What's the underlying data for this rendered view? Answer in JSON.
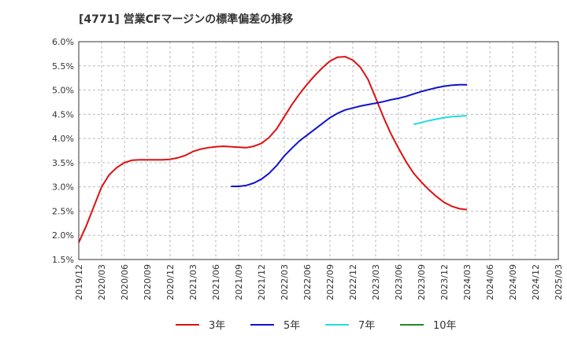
{
  "chart_data": {
    "type": "line",
    "title": "[4771]  営業CFマージンの標準偏差の推移",
    "xlabel": "",
    "ylabel": "",
    "ylim": [
      1.5,
      6.0
    ],
    "yticks": [
      "1.5%",
      "2.0%",
      "2.5%",
      "3.0%",
      "3.5%",
      "4.0%",
      "4.5%",
      "5.0%",
      "5.5%",
      "6.0%"
    ],
    "xticks": [
      "2019/12",
      "2020/03",
      "2020/06",
      "2020/09",
      "2020/12",
      "2021/03",
      "2021/06",
      "2021/09",
      "2021/12",
      "2022/03",
      "2022/06",
      "2022/09",
      "2022/12",
      "2023/03",
      "2023/06",
      "2023/09",
      "2023/12",
      "2024/03",
      "2024/06",
      "2024/09",
      "2024/12",
      "2025/03"
    ],
    "grid": true,
    "legend_position": "bottom",
    "series": [
      {
        "name": "3年",
        "color": "#dd1111",
        "points": [
          [
            "2019/12",
            1.85
          ],
          [
            "2020/01",
            2.2
          ],
          [
            "2020/02",
            2.6
          ],
          [
            "2020/03",
            3.0
          ],
          [
            "2020/04",
            3.25
          ],
          [
            "2020/05",
            3.4
          ],
          [
            "2020/06",
            3.5
          ],
          [
            "2020/07",
            3.55
          ],
          [
            "2020/08",
            3.56
          ],
          [
            "2020/09",
            3.56
          ],
          [
            "2020/10",
            3.56
          ],
          [
            "2020/11",
            3.56
          ],
          [
            "2020/12",
            3.57
          ],
          [
            "2021/01",
            3.6
          ],
          [
            "2021/02",
            3.65
          ],
          [
            "2021/03",
            3.73
          ],
          [
            "2021/04",
            3.78
          ],
          [
            "2021/05",
            3.81
          ],
          [
            "2021/06",
            3.83
          ],
          [
            "2021/07",
            3.84
          ],
          [
            "2021/08",
            3.83
          ],
          [
            "2021/09",
            3.82
          ],
          [
            "2021/10",
            3.81
          ],
          [
            "2021/11",
            3.84
          ],
          [
            "2021/12",
            3.9
          ],
          [
            "2022/01",
            4.02
          ],
          [
            "2022/02",
            4.2
          ],
          [
            "2022/03",
            4.45
          ],
          [
            "2022/04",
            4.7
          ],
          [
            "2022/05",
            4.92
          ],
          [
            "2022/06",
            5.12
          ],
          [
            "2022/07",
            5.3
          ],
          [
            "2022/08",
            5.46
          ],
          [
            "2022/09",
            5.6
          ],
          [
            "2022/10",
            5.68
          ],
          [
            "2022/11",
            5.69
          ],
          [
            "2022/12",
            5.62
          ],
          [
            "2023/01",
            5.47
          ],
          [
            "2023/02",
            5.22
          ],
          [
            "2023/03",
            4.84
          ],
          [
            "2023/04",
            4.45
          ],
          [
            "2023/05",
            4.1
          ],
          [
            "2023/06",
            3.8
          ],
          [
            "2023/07",
            3.52
          ],
          [
            "2023/08",
            3.28
          ],
          [
            "2023/09",
            3.1
          ],
          [
            "2023/10",
            2.94
          ],
          [
            "2023/11",
            2.8
          ],
          [
            "2023/12",
            2.68
          ],
          [
            "2024/01",
            2.6
          ],
          [
            "2024/02",
            2.55
          ],
          [
            "2024/03",
            2.53
          ]
        ]
      },
      {
        "name": "5年",
        "color": "#1111cc",
        "points": [
          [
            "2021/08",
            3.01
          ],
          [
            "2021/09",
            3.01
          ],
          [
            "2021/10",
            3.03
          ],
          [
            "2021/11",
            3.08
          ],
          [
            "2021/12",
            3.16
          ],
          [
            "2022/01",
            3.28
          ],
          [
            "2022/02",
            3.44
          ],
          [
            "2022/03",
            3.64
          ],
          [
            "2022/04",
            3.8
          ],
          [
            "2022/05",
            3.95
          ],
          [
            "2022/06",
            4.07
          ],
          [
            "2022/07",
            4.19
          ],
          [
            "2022/08",
            4.31
          ],
          [
            "2022/09",
            4.43
          ],
          [
            "2022/10",
            4.52
          ],
          [
            "2022/11",
            4.59
          ],
          [
            "2022/12",
            4.63
          ],
          [
            "2023/01",
            4.67
          ],
          [
            "2023/02",
            4.7
          ],
          [
            "2023/03",
            4.73
          ],
          [
            "2023/04",
            4.76
          ],
          [
            "2023/05",
            4.8
          ],
          [
            "2023/06",
            4.83
          ],
          [
            "2023/07",
            4.87
          ],
          [
            "2023/08",
            4.92
          ],
          [
            "2023/09",
            4.97
          ],
          [
            "2023/10",
            5.01
          ],
          [
            "2023/11",
            5.05
          ],
          [
            "2023/12",
            5.08
          ],
          [
            "2024/01",
            5.1
          ],
          [
            "2024/02",
            5.11
          ],
          [
            "2024/03",
            5.11
          ]
        ]
      },
      {
        "name": "7年",
        "color": "#22dddd",
        "points": [
          [
            "2023/08",
            4.29
          ],
          [
            "2023/09",
            4.33
          ],
          [
            "2023/10",
            4.37
          ],
          [
            "2023/11",
            4.4
          ],
          [
            "2023/12",
            4.43
          ],
          [
            "2024/01",
            4.45
          ],
          [
            "2024/02",
            4.46
          ],
          [
            "2024/03",
            4.47
          ]
        ]
      },
      {
        "name": "10年",
        "color": "#228822",
        "points": []
      }
    ]
  }
}
